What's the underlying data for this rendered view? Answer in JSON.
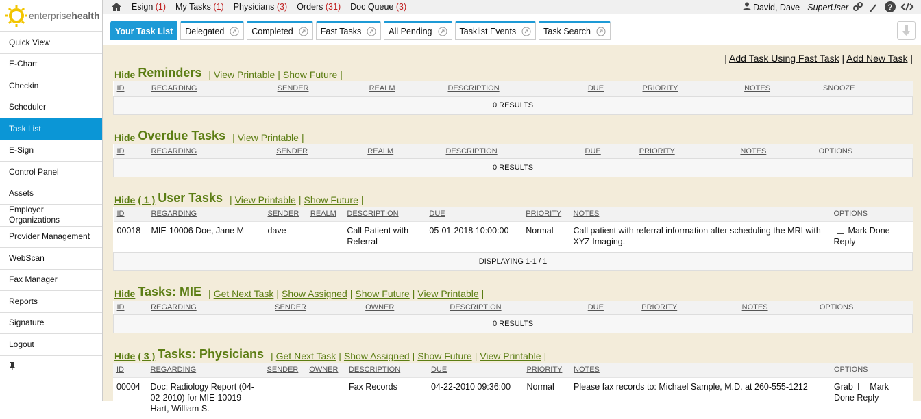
{
  "logo": {
    "light": "enterprise",
    "bold": "health"
  },
  "topnav": [
    {
      "label": "Esign",
      "count": "(1)"
    },
    {
      "label": "My Tasks",
      "count": "(1)"
    },
    {
      "label": "Physicians",
      "count": "(3)"
    },
    {
      "label": "Orders",
      "count": "(31)"
    },
    {
      "label": "Doc Queue",
      "count": "(3)"
    }
  ],
  "user": {
    "name": "David, Dave",
    "separator": "-",
    "role": "SuperUser"
  },
  "sidebar": {
    "items": [
      "Quick View",
      "E-Chart",
      "Checkin",
      "Scheduler",
      "Task List",
      "E-Sign",
      "Control Panel",
      "Assets",
      "Employer Organizations",
      "Provider Management",
      "WebScan",
      "Fax Manager",
      "Reports",
      "Signature",
      "Logout"
    ],
    "active": 4
  },
  "tabs": {
    "items": [
      "Your Task List",
      "Delegated",
      "Completed",
      "Fast Tasks",
      "All Pending",
      "Tasklist Events",
      "Task Search"
    ],
    "active": 0
  },
  "actions": {
    "separator": "|",
    "links": [
      "Add Task Using Fast Task",
      "Add New Task"
    ]
  },
  "sections": [
    {
      "hide": "Hide",
      "title": "Reminders",
      "links": [
        "View Printable",
        "Show Future"
      ],
      "columns": [
        "ID",
        "REGARDING",
        "SENDER",
        "REALM",
        "DESCRIPTION",
        "DUE",
        "PRIORITY",
        "NOTES",
        "SNOOZE"
      ],
      "footer": "0 RESULTS"
    },
    {
      "hide": "Hide",
      "title": "Overdue Tasks",
      "links": [
        "View Printable"
      ],
      "columns": [
        "ID",
        "REGARDING",
        "SENDER",
        "REALM",
        "DESCRIPTION",
        "DUE",
        "PRIORITY",
        "NOTES",
        "OPTIONS"
      ],
      "footer": "0 RESULTS"
    },
    {
      "hide": "Hide",
      "count": "( 1 )",
      "title": "User Tasks",
      "links": [
        "View Printable",
        "Show Future"
      ],
      "columns": [
        "ID",
        "REGARDING",
        "SENDER",
        "REALM",
        "DESCRIPTION",
        "DUE",
        "PRIORITY",
        "NOTES",
        "OPTIONS"
      ],
      "rows": [
        {
          "cells": [
            "00018",
            "MIE-10006 Doe, Jane M",
            "dave",
            null,
            "Call Patient with Referral",
            "05-01-2018 10:00:00",
            "Normal",
            "Call patient with referral information after scheduling the MRI with XYZ Imaging."
          ],
          "options": [
            {
              "text": "Mark Done",
              "checkbox": true
            },
            {
              "text": "Reply",
              "checkbox": false
            }
          ]
        }
      ],
      "footer": "DISPLAYING 1-1 / 1"
    },
    {
      "hide": "Hide",
      "title": "Tasks: MIE",
      "links": [
        "Get Next Task",
        "Show Assigned",
        "Show Future",
        "View Printable"
      ],
      "columns": [
        "ID",
        "REGARDING",
        "SENDER",
        "OWNER",
        "DESCRIPTION",
        "DUE",
        "PRIORITY",
        "NOTES",
        "OPTIONS"
      ],
      "footer": "0 RESULTS"
    },
    {
      "hide": "Hide",
      "count": "( 3 )",
      "title": "Tasks: Physicians",
      "links": [
        "Get Next Task",
        "Show Assigned",
        "Show Future",
        "View Printable"
      ],
      "columns": [
        "ID",
        "REGARDING",
        "SENDER",
        "OWNER",
        "DESCRIPTION",
        "DUE",
        "PRIORITY",
        "NOTES",
        "OPTIONS"
      ],
      "rows": [
        {
          "cells": [
            "00004",
            "Doc: Radiology Report (04-02-2010) for MIE-10019 Hart, William S.",
            null,
            null,
            "Fax Records",
            "04-22-2010 09:36:00",
            "Normal",
            "Please fax records to: Michael Sample, M.D. at 260-555-1212"
          ],
          "options": [
            {
              "text": "Grab",
              "checkbox": false
            },
            {
              "text": "Mark Done",
              "checkbox": true
            },
            {
              "text": "Reply",
              "checkbox": false
            }
          ]
        }
      ]
    }
  ]
}
